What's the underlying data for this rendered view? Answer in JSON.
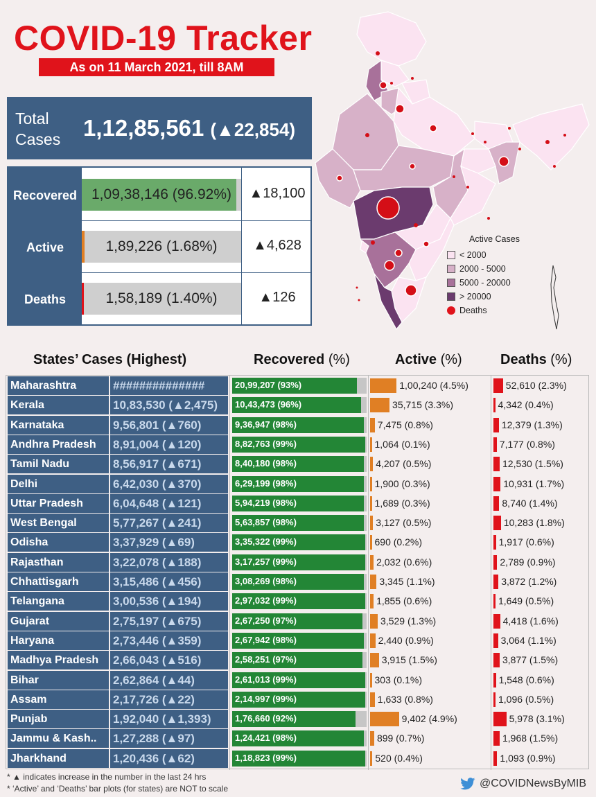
{
  "header": {
    "title": "COVID-19 Tracker",
    "date": "As on 11 March 2021, till 8AM"
  },
  "total": {
    "label_line1": "Total",
    "label_line2": "Cases",
    "value": "1,12,85,561",
    "delta": "(▲22,854)"
  },
  "summary": [
    {
      "label": "Recovered",
      "value": "1,09,38,146",
      "pct": "(96.92%)",
      "delta": "▲18,100",
      "share": 0.9692,
      "color": "#6aaa6a"
    },
    {
      "label": "Active",
      "value": "1,89,226",
      "pct": "(1.68%)",
      "delta": "▲4,628",
      "share": 0.0168,
      "color": "#e07f24"
    },
    {
      "label": "Deaths",
      "value": "1,58,189",
      "pct": "(1.40%)",
      "delta": "▲126",
      "share": 0.014,
      "color": "#e0131b"
    }
  ],
  "legend": {
    "title": "Active Cases",
    "items": [
      {
        "label": "< 2000",
        "color": "#fbe3f1"
      },
      {
        "label": "2000 - 5000",
        "color": "#d7b1c8"
      },
      {
        "label": "5000 - 20000",
        "color": "#a8719a"
      },
      {
        "label": "> 20000",
        "color": "#6b3b6e"
      }
    ],
    "deaths_label": "Deaths"
  },
  "columns": {
    "states": "States’ Cases (Highest)",
    "recovered": "Recovered",
    "active": "Active",
    "deaths": "Deaths",
    "pct": "(%)"
  },
  "chart_data": {
    "type": "table",
    "title": "States’ Cases (Highest)",
    "columns": [
      "State",
      "Cases",
      "Recovered",
      "Active",
      "Deaths"
    ],
    "rows": [
      {
        "state": "Maharashtra",
        "cases": "##############",
        "recovered": "20,99,207 (93%)",
        "rec_pct": 93,
        "active": "1,00,240 (4.5%)",
        "act_pct": 4.5,
        "deaths": "52,610 (2.3%)",
        "dth_pct": 2.3
      },
      {
        "state": "Kerala",
        "cases": "10,83,530 (▲2,475)",
        "recovered": "10,43,473 (96%)",
        "rec_pct": 96,
        "active": "35,715 (3.3%)",
        "act_pct": 3.3,
        "deaths": "4,342 (0.4%)",
        "dth_pct": 0.4
      },
      {
        "state": "Karnataka",
        "cases": "9,56,801 (▲760)",
        "recovered": "9,36,947 (98%)",
        "rec_pct": 98,
        "active": "7,475 (0.8%)",
        "act_pct": 0.8,
        "deaths": "12,379 (1.3%)",
        "dth_pct": 1.3
      },
      {
        "state": "Andhra Pradesh",
        "cases": "8,91,004 (▲120)",
        "recovered": "8,82,763 (99%)",
        "rec_pct": 99,
        "active": "1,064 (0.1%)",
        "act_pct": 0.1,
        "deaths": "7,177 (0.8%)",
        "dth_pct": 0.8
      },
      {
        "state": "Tamil Nadu",
        "cases": "8,56,917 (▲671)",
        "recovered": "8,40,180 (98%)",
        "rec_pct": 98,
        "active": "4,207 (0.5%)",
        "act_pct": 0.5,
        "deaths": "12,530 (1.5%)",
        "dth_pct": 1.5
      },
      {
        "state": "Delhi",
        "cases": "6,42,030 (▲370)",
        "recovered": "6,29,199 (98%)",
        "rec_pct": 98,
        "active": "1,900 (0.3%)",
        "act_pct": 0.3,
        "deaths": "10,931 (1.7%)",
        "dth_pct": 1.7
      },
      {
        "state": "Uttar Pradesh",
        "cases": "6,04,648 (▲121)",
        "recovered": "5,94,219 (98%)",
        "rec_pct": 98,
        "active": "1,689 (0.3%)",
        "act_pct": 0.3,
        "deaths": "8,740 (1.4%)",
        "dth_pct": 1.4
      },
      {
        "state": "West Bengal",
        "cases": "5,77,267 (▲241)",
        "recovered": "5,63,857 (98%)",
        "rec_pct": 98,
        "active": "3,127 (0.5%)",
        "act_pct": 0.5,
        "deaths": "10,283 (1.8%)",
        "dth_pct": 1.8
      },
      {
        "state": "Odisha",
        "cases": "3,37,929 (▲69)",
        "recovered": "3,35,322 (99%)",
        "rec_pct": 99,
        "active": "690 (0.2%)",
        "act_pct": 0.2,
        "deaths": "1,917 (0.6%)",
        "dth_pct": 0.6
      },
      {
        "state": "Rajasthan",
        "cases": "3,22,078 (▲188)",
        "recovered": "3,17,257 (99%)",
        "rec_pct": 99,
        "active": "2,032 (0.6%)",
        "act_pct": 0.6,
        "deaths": "2,789 (0.9%)",
        "dth_pct": 0.9
      },
      {
        "state": "Chhattisgarh",
        "cases": "3,15,486 (▲456)",
        "recovered": "3,08,269 (98%)",
        "rec_pct": 98,
        "active": "3,345 (1.1%)",
        "act_pct": 1.1,
        "deaths": "3,872 (1.2%)",
        "dth_pct": 1.2
      },
      {
        "state": "Telangana",
        "cases": "3,00,536 (▲194)",
        "recovered": "2,97,032 (99%)",
        "rec_pct": 99,
        "active": "1,855 (0.6%)",
        "act_pct": 0.6,
        "deaths": "1,649 (0.5%)",
        "dth_pct": 0.5
      },
      {
        "state": "Gujarat",
        "cases": "2,75,197 (▲675)",
        "recovered": "2,67,250 (97%)",
        "rec_pct": 97,
        "active": "3,529 (1.3%)",
        "act_pct": 1.3,
        "deaths": "4,418 (1.6%)",
        "dth_pct": 1.6
      },
      {
        "state": "Haryana",
        "cases": "2,73,446 (▲359)",
        "recovered": "2,67,942 (98%)",
        "rec_pct": 98,
        "active": "2,440 (0.9%)",
        "act_pct": 0.9,
        "deaths": "3,064 (1.1%)",
        "dth_pct": 1.1
      },
      {
        "state": "Madhya Pradesh",
        "cases": "2,66,043 (▲516)",
        "recovered": "2,58,251 (97%)",
        "rec_pct": 97,
        "active": "3,915 (1.5%)",
        "act_pct": 1.5,
        "deaths": "3,877 (1.5%)",
        "dth_pct": 1.5
      },
      {
        "state": "Bihar",
        "cases": "2,62,864 (▲44)",
        "recovered": "2,61,013 (99%)",
        "rec_pct": 99,
        "active": "303 (0.1%)",
        "act_pct": 0.1,
        "deaths": "1,548 (0.6%)",
        "dth_pct": 0.6
      },
      {
        "state": "Assam",
        "cases": "2,17,726 (▲22)",
        "recovered": "2,14,997 (99%)",
        "rec_pct": 99,
        "active": "1,633 (0.8%)",
        "act_pct": 0.8,
        "deaths": "1,096 (0.5%)",
        "dth_pct": 0.5
      },
      {
        "state": "Punjab",
        "cases": "1,92,040 (▲1,393)",
        "recovered": "1,76,660 (92%)",
        "rec_pct": 92,
        "active": "9,402 (4.9%)",
        "act_pct": 4.9,
        "deaths": "5,978 (3.1%)",
        "dth_pct": 3.1
      },
      {
        "state": "Jammu & Kash..",
        "cases": "1,27,288 (▲97)",
        "recovered": "1,24,421 (98%)",
        "rec_pct": 98,
        "active": "899 (0.7%)",
        "act_pct": 0.7,
        "deaths": "1,968 (1.5%)",
        "dth_pct": 1.5
      },
      {
        "state": "Jharkhand",
        "cases": "1,20,436 (▲62)",
        "recovered": "1,18,823 (99%)",
        "rec_pct": 99,
        "active": "520 (0.4%)",
        "act_pct": 0.4,
        "deaths": "1,093 (0.9%)",
        "dth_pct": 0.9
      }
    ]
  },
  "footnotes": [
    "* ▲ indicates increase in the number in the last 24 hrs",
    "* ‘Active’ and ‘Deaths’ bar plots (for states) are NOT to scale"
  ],
  "handle": "@COVIDNewsByMIB",
  "colors": {
    "accent_red": "#e0131b",
    "navy": "#3e5f84",
    "green": "#238636",
    "orange": "#e07f24"
  }
}
